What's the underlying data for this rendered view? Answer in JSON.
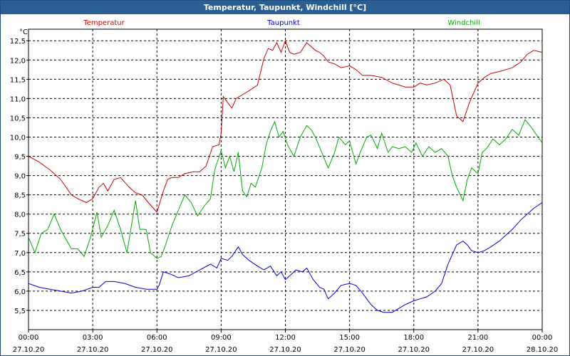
{
  "window": {
    "title": "Temperatur, Taupunkt, Windchill [°C]"
  },
  "colors": {
    "titlebar": "#2a5f93",
    "axis": "#000000",
    "grid": "#000000"
  },
  "chart_data": {
    "type": "line",
    "title": "Temperatur, Taupunkt, Windchill [°C]",
    "ylabel": "°C",
    "xlabel": "",
    "ylim": [
      5.0,
      12.8
    ],
    "xlim": [
      0,
      24
    ],
    "grid": true,
    "legend_placement": "top",
    "y_ticks": [
      5.5,
      6.0,
      6.5,
      7.0,
      7.5,
      8.0,
      8.5,
      9.0,
      9.5,
      10.0,
      10.5,
      11.0,
      11.5,
      12.0,
      12.5
    ],
    "y_tick_labels": [
      "5,5",
      "6,0",
      "6,5",
      "7,0",
      "7,5",
      "8,0",
      "8,5",
      "9,0",
      "9,5",
      "10,0",
      "10,5",
      "11,0",
      "11,5",
      "12,0",
      "12,5"
    ],
    "x_ticks": [
      0,
      3,
      6,
      9,
      12,
      15,
      18,
      21,
      24
    ],
    "x_tick_times": [
      "00:00",
      "03:00",
      "06:00",
      "09:00",
      "12:00",
      "15:00",
      "18:00",
      "21:00",
      "00:00"
    ],
    "x_tick_dates": [
      "27.10.20",
      "27.10.20",
      "27.10.20",
      "27.10.20",
      "27.10.20",
      "27.10.20",
      "27.10.20",
      "27.10.20",
      "28.10.20"
    ],
    "series": [
      {
        "name": "Temperatur",
        "color": "#cc0000",
        "x": [
          0,
          0.5,
          1.0,
          1.5,
          2.0,
          2.3,
          2.7,
          3.0,
          3.3,
          3.5,
          3.7,
          4.0,
          4.3,
          4.7,
          5.0,
          5.3,
          5.6,
          6.0,
          6.3,
          6.5,
          6.7,
          7.0,
          7.3,
          7.7,
          8.0,
          8.3,
          8.6,
          8.9,
          9.0,
          9.1,
          9.3,
          9.5,
          9.7,
          10.0,
          10.3,
          10.7,
          11.0,
          11.2,
          11.4,
          11.6,
          11.8,
          12.0,
          12.2,
          12.4,
          12.7,
          13.0,
          13.2,
          13.4,
          13.6,
          13.8,
          14.0,
          14.3,
          14.6,
          15.0,
          15.3,
          15.6,
          16.0,
          16.5,
          17.0,
          17.3,
          17.6,
          18.0,
          18.3,
          18.6,
          19.0,
          19.4,
          19.7,
          20.0,
          20.3,
          20.6,
          21.0,
          21.3,
          21.6,
          22.0,
          22.3,
          22.6,
          23.0,
          23.3,
          23.6,
          24.0
        ],
        "values": [
          9.5,
          9.35,
          9.15,
          8.9,
          8.5,
          8.4,
          8.3,
          8.4,
          8.7,
          8.8,
          8.6,
          8.9,
          8.95,
          8.7,
          8.55,
          8.5,
          8.3,
          8.05,
          8.6,
          8.9,
          8.95,
          8.95,
          9.05,
          9.1,
          9.1,
          9.25,
          9.75,
          9.8,
          10.1,
          11.05,
          10.9,
          10.75,
          11.0,
          11.1,
          11.2,
          11.35,
          12.05,
          12.3,
          12.25,
          12.45,
          12.2,
          12.5,
          12.2,
          12.15,
          12.2,
          12.45,
          12.35,
          12.25,
          12.2,
          12.1,
          11.95,
          11.9,
          11.8,
          11.85,
          11.75,
          11.6,
          11.6,
          11.55,
          11.4,
          11.35,
          11.3,
          11.3,
          11.4,
          11.35,
          11.4,
          11.5,
          11.35,
          10.55,
          10.4,
          10.9,
          11.4,
          11.55,
          11.65,
          11.7,
          11.75,
          11.8,
          11.95,
          12.15,
          12.25,
          12.2
        ]
      },
      {
        "name": "Taupunkt",
        "color": "#0000cc",
        "x": [
          0,
          0.5,
          1.0,
          1.5,
          2.0,
          2.5,
          3.0,
          3.3,
          3.6,
          4.0,
          4.5,
          5.0,
          5.5,
          6.0,
          6.1,
          6.3,
          6.6,
          7.0,
          7.5,
          8.0,
          8.5,
          8.8,
          9.0,
          9.3,
          9.5,
          9.8,
          10.0,
          10.3,
          10.7,
          11.0,
          11.3,
          11.6,
          11.8,
          12.0,
          12.3,
          12.5,
          12.8,
          13.0,
          13.3,
          13.6,
          13.8,
          14.0,
          14.3,
          14.6,
          15.0,
          15.3,
          15.6,
          16.0,
          16.3,
          16.6,
          17.0,
          17.3,
          17.6,
          18.0,
          18.3,
          18.6,
          19.0,
          19.3,
          19.6,
          20.0,
          20.3,
          20.5,
          20.7,
          21.0,
          21.3,
          21.6,
          22.0,
          22.3,
          22.6,
          23.0,
          23.3,
          23.6,
          24.0
        ],
        "values": [
          6.2,
          6.1,
          6.05,
          6.0,
          5.95,
          6.0,
          6.1,
          6.1,
          6.25,
          6.25,
          6.2,
          6.1,
          6.05,
          6.05,
          6.15,
          6.5,
          6.45,
          6.35,
          6.4,
          6.55,
          6.7,
          6.6,
          6.85,
          6.8,
          6.9,
          7.15,
          6.95,
          6.8,
          6.65,
          6.55,
          6.65,
          6.4,
          6.5,
          6.3,
          6.45,
          6.55,
          6.5,
          6.6,
          6.3,
          6.1,
          6.05,
          5.8,
          5.95,
          6.15,
          6.2,
          6.15,
          5.95,
          5.65,
          5.5,
          5.45,
          5.45,
          5.55,
          5.65,
          5.75,
          5.8,
          5.85,
          6.0,
          6.2,
          6.7,
          7.2,
          7.3,
          7.2,
          7.05,
          7.0,
          7.05,
          7.15,
          7.3,
          7.45,
          7.6,
          7.85,
          8.0,
          8.15,
          8.3
        ]
      },
      {
        "name": "Windchill",
        "color": "#00aa00",
        "x": [
          0,
          0.3,
          0.6,
          0.9,
          1.2,
          1.5,
          1.7,
          2.0,
          2.3,
          2.6,
          2.9,
          3.2,
          3.4,
          3.7,
          4.0,
          4.3,
          4.6,
          5.0,
          5.2,
          5.5,
          5.7,
          6.0,
          6.2,
          6.4,
          6.7,
          7.0,
          7.3,
          7.6,
          7.9,
          8.2,
          8.5,
          8.7,
          9.0,
          9.2,
          9.4,
          9.6,
          9.8,
          10.0,
          10.2,
          10.4,
          10.6,
          10.9,
          11.1,
          11.3,
          11.5,
          11.7,
          11.9,
          12.1,
          12.4,
          12.7,
          13.0,
          13.2,
          13.4,
          13.7,
          14.0,
          14.3,
          14.5,
          14.8,
          15.0,
          15.3,
          15.5,
          15.8,
          16.0,
          16.3,
          16.5,
          16.8,
          17.0,
          17.3,
          17.6,
          17.9,
          18.1,
          18.4,
          18.7,
          19.0,
          19.3,
          19.6,
          19.8,
          20.0,
          20.3,
          20.5,
          20.7,
          21.0,
          21.2,
          21.4,
          21.7,
          22.0,
          22.3,
          22.6,
          22.9,
          23.2,
          23.5,
          23.8,
          24.0
        ],
        "values": [
          7.4,
          7.0,
          7.5,
          7.6,
          8.0,
          7.6,
          7.4,
          7.1,
          7.1,
          6.9,
          7.4,
          8.05,
          7.4,
          7.7,
          8.1,
          7.6,
          7.0,
          8.35,
          7.6,
          7.6,
          7.0,
          6.85,
          6.9,
          7.2,
          7.7,
          8.1,
          8.5,
          8.3,
          7.95,
          8.2,
          8.4,
          9.15,
          9.65,
          9.2,
          9.5,
          9.1,
          9.6,
          8.6,
          8.45,
          8.8,
          8.7,
          9.2,
          9.8,
          10.15,
          10.4,
          10.0,
          10.15,
          9.8,
          9.5,
          10.0,
          10.3,
          10.2,
          10.0,
          9.6,
          9.2,
          9.6,
          10.0,
          9.8,
          9.9,
          9.3,
          9.6,
          10.0,
          10.05,
          9.7,
          10.1,
          9.6,
          9.75,
          9.7,
          9.75,
          9.6,
          9.85,
          9.5,
          9.75,
          9.6,
          9.7,
          9.5,
          9.0,
          8.7,
          8.35,
          8.9,
          9.2,
          9.05,
          9.6,
          9.7,
          9.95,
          9.8,
          9.95,
          10.2,
          10.05,
          10.45,
          10.25,
          10.0,
          9.85
        ]
      }
    ]
  }
}
